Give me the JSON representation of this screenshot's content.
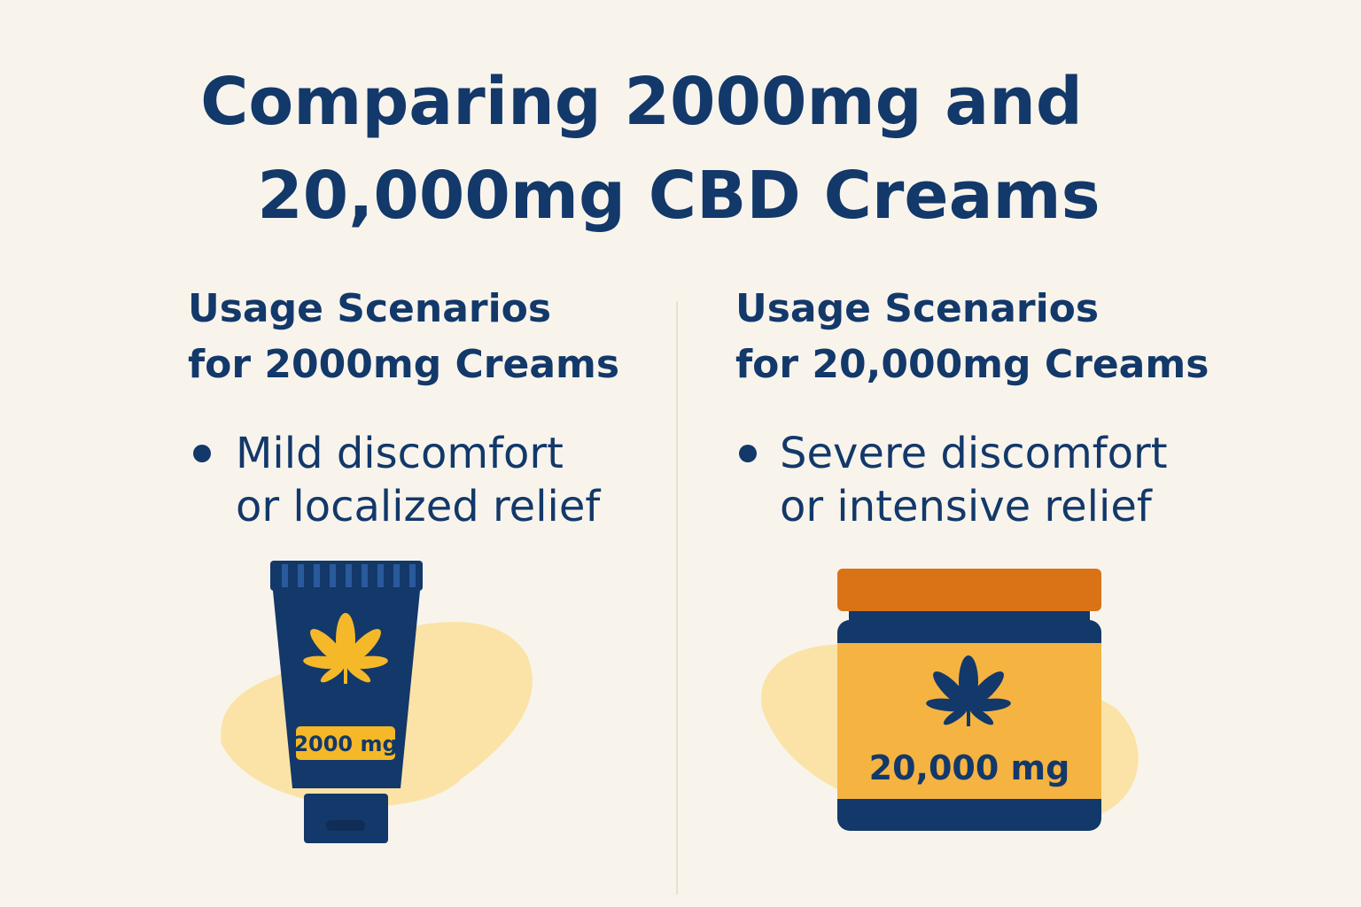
{
  "title": {
    "lines": [
      "Comparing 2000mg and",
      "20,000mg CBD Creams"
    ]
  },
  "columns": [
    {
      "heading": [
        "Usage Scenarios",
        "for 2000mg Creams"
      ],
      "bullet": [
        "Mild discomfort",
        "or localized relief"
      ],
      "product_label": "2000 mg"
    },
    {
      "heading": [
        "Usage Scenarios",
        "for 20,000mg Creams"
      ],
      "bullet": [
        "Severe discomfort",
        "or intensive relief"
      ],
      "product_label": "20,000 mg"
    }
  ]
}
